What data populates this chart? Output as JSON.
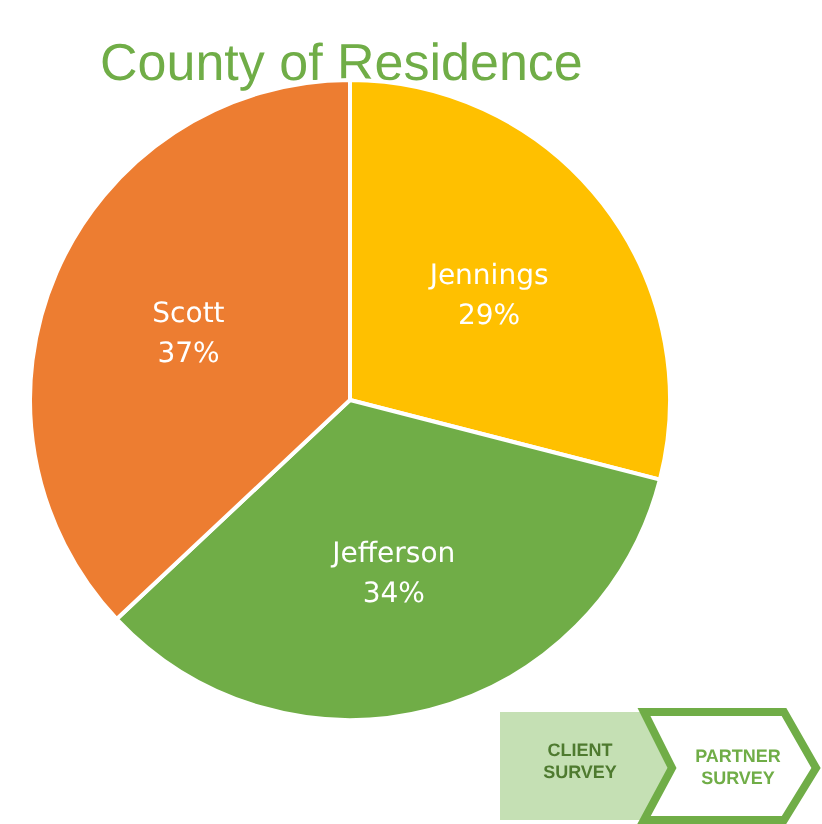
{
  "chart_data": {
    "type": "pie",
    "title": "County of Residence",
    "categories": [
      "Jennings",
      "Jefferson",
      "Scott"
    ],
    "values": [
      29,
      34,
      37
    ],
    "value_labels": [
      "29%",
      "34%",
      "37%"
    ],
    "colors": [
      "#ffc000",
      "#70ad47",
      "#ed7d31"
    ],
    "annotations": [
      "CLIENT SURVEY",
      "PARTNER SURVEY"
    ]
  }
}
